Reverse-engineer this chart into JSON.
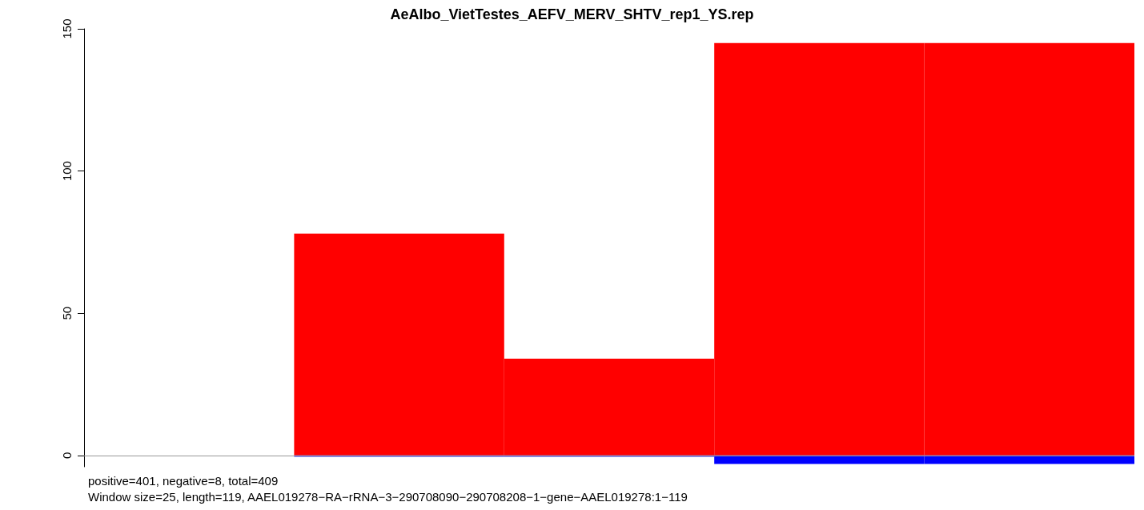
{
  "chart_data": {
    "type": "bar",
    "title": "AeAlbo_VietTestes_AEFV_MERV_SHTV_rep1_YS.rep",
    "categories": [
      null,
      null,
      null,
      null,
      null
    ],
    "series": [
      {
        "color": "#ff0000",
        "values": [
          0,
          78,
          34,
          145,
          145
        ]
      },
      {
        "color": "#0000ff",
        "values": [
          0,
          -0.5,
          -0.5,
          -3,
          -3
        ]
      }
    ],
    "stacked": true,
    "ylim": [
      -4,
      150
    ],
    "yticks": [
      0,
      50,
      100,
      150
    ],
    "ref_lines": [
      {
        "axis": "y",
        "value": 0,
        "color": "#999999"
      }
    ],
    "annotations": [
      "positive=401, negative=8, total=409",
      "Window size=25, length=119, AAEL019278−RA−rRNA−3−290708090−290708208−1−gene−AAEL019278:1−119"
    ],
    "grid": false,
    "tick_labels": "y"
  }
}
